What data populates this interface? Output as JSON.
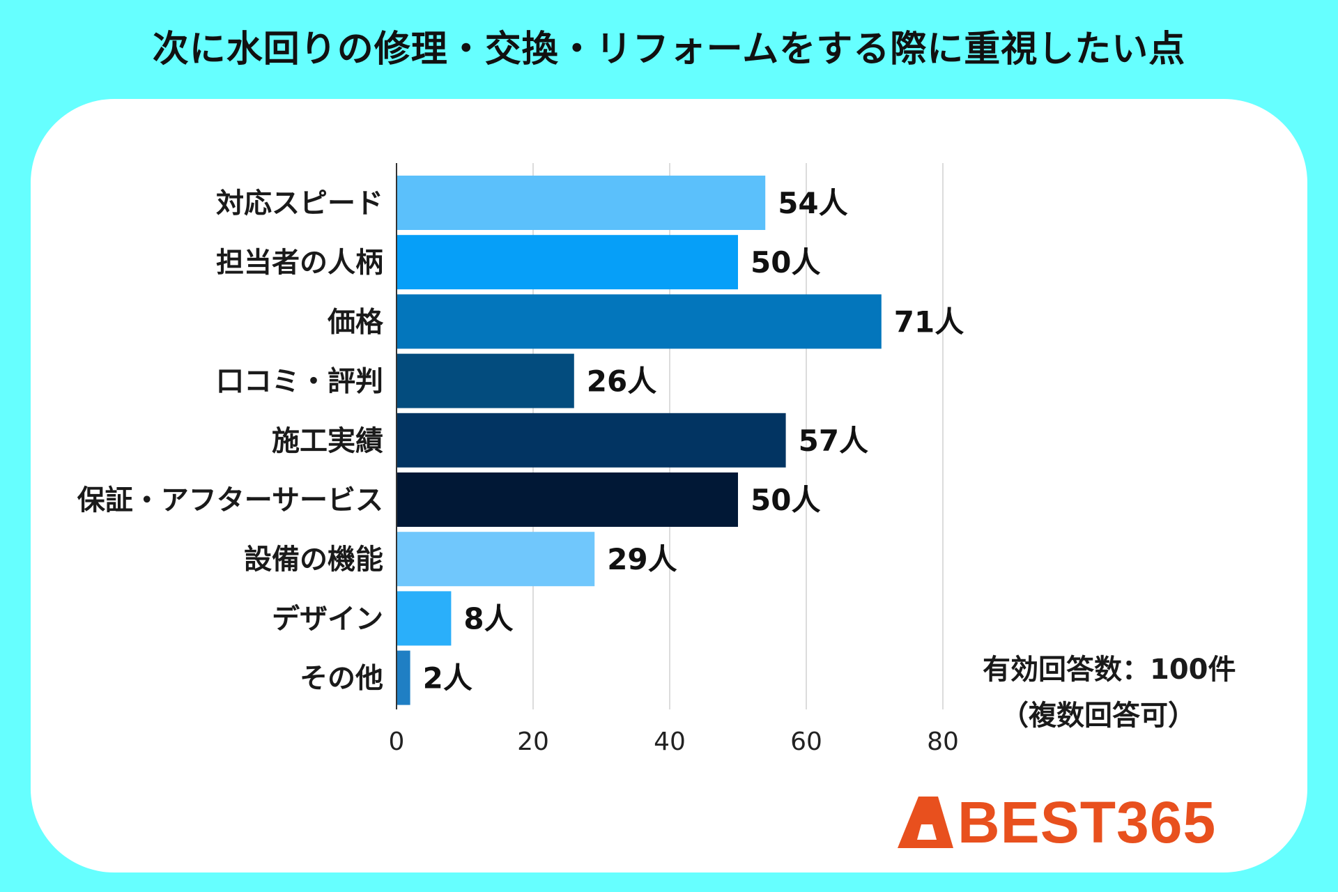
{
  "title": "次に水回りの修理・交換・リフォームをする際に重視したい点",
  "note": {
    "line1": "有効回答数：100件",
    "line2": "（複数回答可）"
  },
  "logo": {
    "text": "BEST365",
    "color": "#E8501E"
  },
  "colors": {
    "background": "#66FFFF",
    "card": "#FFFFFF",
    "grid": "#D0D0D0"
  },
  "chart_data": {
    "type": "bar",
    "orientation": "horizontal",
    "title": "次に水回りの修理・交換・リフォームをする際に重視したい点",
    "unit": "人",
    "xlim": [
      0,
      80
    ],
    "xticks": [
      0,
      20,
      40,
      60,
      80
    ],
    "grid": true,
    "categories": [
      "対応スピード",
      "担当者の人柄",
      "価格",
      "口コミ・評判",
      "施工実績",
      "保証・アフターサービス",
      "設備の機能",
      "デザイン",
      "その他"
    ],
    "values": [
      54,
      50,
      71,
      26,
      57,
      50,
      29,
      8,
      2
    ],
    "value_labels": [
      "54人",
      "50人",
      "71人",
      "26人",
      "57人",
      "50人",
      "29人",
      "8人",
      "2人"
    ],
    "bar_colors": [
      "#5BC0FB",
      "#069FF8",
      "#0376BC",
      "#034C7E",
      "#023462",
      "#011836",
      "#70C7FC",
      "#2AAFFA",
      "#1F7FC4"
    ]
  }
}
